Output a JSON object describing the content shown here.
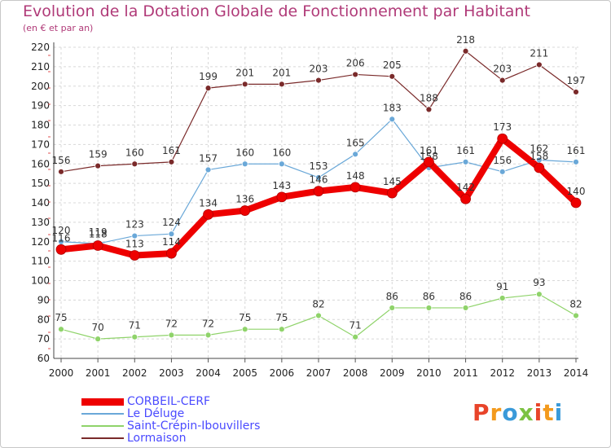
{
  "header": {
    "title": "Evolution de la Dotation Globale de Fonctionnement par Habitant",
    "subtitle": "(en € et par an)"
  },
  "logo": {
    "text": "Proxiti",
    "colors": [
      "#e8442a",
      "#f39a1d",
      "#3a9ad9",
      "#7cc242",
      "#e8442a",
      "#f39a1d",
      "#3a9ad9"
    ]
  },
  "chart_data": {
    "type": "line",
    "x": [
      "2000",
      "2001",
      "2002",
      "2003",
      "2004",
      "2005",
      "2006",
      "2007",
      "2008",
      "2009",
      "2010",
      "2011",
      "2012",
      "2013",
      "2014"
    ],
    "ylim": [
      60,
      220
    ],
    "yticks": [
      60,
      70,
      80,
      90,
      100,
      110,
      120,
      130,
      140,
      150,
      160,
      170,
      180,
      190,
      200,
      210,
      220
    ],
    "grid": true,
    "legend_position": "bottom-left",
    "series": [
      {
        "name": "Lormaison",
        "color": "#7a2a2a",
        "width": 1.2,
        "marker": 3.5,
        "values": [
          156,
          159,
          160,
          161,
          199,
          201,
          201,
          203,
          206,
          205,
          188,
          218,
          203,
          211,
          197
        ]
      },
      {
        "name": "Saint-Crépin-Ibouvillers",
        "color": "#8fd36a",
        "width": 1.2,
        "marker": 3.5,
        "values": [
          75,
          70,
          71,
          72,
          72,
          75,
          75,
          82,
          71,
          86,
          86,
          86,
          91,
          93,
          82
        ]
      },
      {
        "name": "Le Déluge",
        "color": "#6aa8d8",
        "width": 1.2,
        "marker": 3.5,
        "values": [
          120,
          119,
          123,
          124,
          157,
          160,
          160,
          153,
          165,
          183,
          158,
          161,
          156,
          162,
          161
        ]
      },
      {
        "name": "CORBEIL-CERF",
        "color": "#ee0000",
        "width": 8,
        "marker": 6,
        "values": [
          116,
          118,
          113,
          114,
          134,
          136,
          143,
          146,
          148,
          145,
          161,
          142,
          173,
          158,
          140
        ]
      }
    ]
  }
}
